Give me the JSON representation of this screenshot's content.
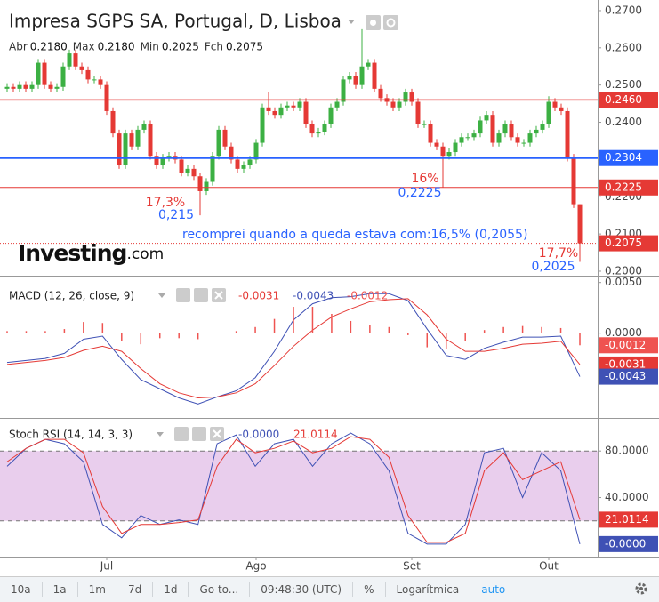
{
  "header": {
    "title": "Impresa SGPS SA, Portugal, D, Lisboa",
    "ohlc": [
      {
        "label": "Abr",
        "value": "0.2180"
      },
      {
        "label": "Max",
        "value": "0.2180"
      },
      {
        "label": "Min",
        "value": "0.2025"
      },
      {
        "label": "Fch",
        "value": "0.2075"
      }
    ]
  },
  "logo": {
    "name": "Investing",
    "suffix": ".com"
  },
  "chart_data": [
    {
      "type": "candlestick",
      "up_color": "#3cb043",
      "down_color": "#e53935",
      "ylim": [
        0.1988,
        0.2719
      ],
      "yticks": [
        {
          "value": 0.27,
          "label": "0.2700"
        },
        {
          "value": 0.26,
          "label": "0.2600"
        },
        {
          "value": 0.25,
          "label": "0.2500"
        },
        {
          "value": 0.24,
          "label": "0.2400"
        },
        {
          "value": 0.23,
          "label": "0.2300"
        },
        {
          "value": 0.22,
          "label": "0.2200"
        },
        {
          "value": 0.21,
          "label": "0.2100"
        },
        {
          "value": 0.2,
          "label": "0.2000"
        }
      ],
      "months": [
        "Jul",
        "Ago",
        "Set",
        "Out"
      ],
      "month_start": [
        16,
        40,
        65,
        87
      ],
      "candles": [
        [
          0.249,
          0.2505,
          0.248,
          0.2495
        ],
        [
          0.2495,
          0.2505,
          0.248,
          0.249
        ],
        [
          0.249,
          0.251,
          0.248,
          0.25
        ],
        [
          0.25,
          0.251,
          0.248,
          0.249
        ],
        [
          0.249,
          0.251,
          0.248,
          0.25
        ],
        [
          0.25,
          0.257,
          0.249,
          0.256
        ],
        [
          0.256,
          0.257,
          0.249,
          0.25
        ],
        [
          0.25,
          0.251,
          0.248,
          0.249
        ],
        [
          0.249,
          0.2505,
          0.248,
          0.2495
        ],
        [
          0.2495,
          0.256,
          0.2485,
          0.255
        ],
        [
          0.255,
          0.2595,
          0.254,
          0.2585
        ],
        [
          0.2585,
          0.2595,
          0.254,
          0.255
        ],
        [
          0.255,
          0.256,
          0.253,
          0.254
        ],
        [
          0.254,
          0.255,
          0.2505,
          0.2515
        ],
        [
          0.2515,
          0.2525,
          0.2505,
          0.2515
        ],
        [
          0.2515,
          0.2525,
          0.249,
          0.25
        ],
        [
          0.25,
          0.251,
          0.242,
          0.243
        ],
        [
          0.243,
          0.244,
          0.236,
          0.237
        ],
        [
          0.237,
          0.238,
          0.2275,
          0.2285
        ],
        [
          0.2285,
          0.238,
          0.2275,
          0.237
        ],
        [
          0.237,
          0.238,
          0.2325,
          0.2335
        ],
        [
          0.2335,
          0.239,
          0.2325,
          0.238
        ],
        [
          0.238,
          0.2405,
          0.237,
          0.2395
        ],
        [
          0.2395,
          0.2405,
          0.23,
          0.231
        ],
        [
          0.231,
          0.232,
          0.2275,
          0.2285
        ],
        [
          0.2285,
          0.2315,
          0.2275,
          0.2305
        ],
        [
          0.2305,
          0.232,
          0.2295,
          0.231
        ],
        [
          0.231,
          0.232,
          0.229,
          0.23
        ],
        [
          0.23,
          0.231,
          0.2255,
          0.2265
        ],
        [
          0.2265,
          0.2285,
          0.2255,
          0.2275
        ],
        [
          0.2275,
          0.2285,
          0.2245,
          0.2255
        ],
        [
          0.2255,
          0.2265,
          0.215,
          0.2215
        ],
        [
          0.2215,
          0.225,
          0.2205,
          0.224
        ],
        [
          0.224,
          0.232,
          0.223,
          0.231
        ],
        [
          0.231,
          0.239,
          0.23,
          0.238
        ],
        [
          0.238,
          0.239,
          0.2325,
          0.2335
        ],
        [
          0.2335,
          0.2345,
          0.229,
          0.23
        ],
        [
          0.23,
          0.231,
          0.2265,
          0.2275
        ],
        [
          0.2275,
          0.2295,
          0.2265,
          0.2285
        ],
        [
          0.2285,
          0.231,
          0.2275,
          0.23
        ],
        [
          0.23,
          0.2355,
          0.229,
          0.2345
        ],
        [
          0.2345,
          0.245,
          0.2335,
          0.244
        ],
        [
          0.244,
          0.248,
          0.242,
          0.243
        ],
        [
          0.243,
          0.244,
          0.241,
          0.242
        ],
        [
          0.242,
          0.245,
          0.241,
          0.244
        ],
        [
          0.244,
          0.2455,
          0.243,
          0.2445
        ],
        [
          0.2445,
          0.2455,
          0.243,
          0.244
        ],
        [
          0.244,
          0.2465,
          0.243,
          0.2455
        ],
        [
          0.2455,
          0.2465,
          0.2385,
          0.2395
        ],
        [
          0.2395,
          0.2405,
          0.236,
          0.237
        ],
        [
          0.237,
          0.2385,
          0.236,
          0.2375
        ],
        [
          0.2375,
          0.2405,
          0.2365,
          0.2395
        ],
        [
          0.2395,
          0.245,
          0.2385,
          0.244
        ],
        [
          0.244,
          0.2465,
          0.243,
          0.2455
        ],
        [
          0.2455,
          0.2525,
          0.2445,
          0.2515
        ],
        [
          0.2515,
          0.2535,
          0.2505,
          0.2525
        ],
        [
          0.2525,
          0.2535,
          0.249,
          0.25
        ],
        [
          0.25,
          0.265,
          0.249,
          0.255
        ],
        [
          0.255,
          0.257,
          0.254,
          0.256
        ],
        [
          0.256,
          0.257,
          0.248,
          0.249
        ],
        [
          0.249,
          0.25,
          0.2455,
          0.2465
        ],
        [
          0.2465,
          0.2475,
          0.2445,
          0.2455
        ],
        [
          0.2455,
          0.2465,
          0.243,
          0.244
        ],
        [
          0.244,
          0.2465,
          0.243,
          0.2455
        ],
        [
          0.2455,
          0.249,
          0.2445,
          0.248
        ],
        [
          0.248,
          0.249,
          0.2445,
          0.2455
        ],
        [
          0.2455,
          0.2465,
          0.2385,
          0.2395
        ],
        [
          0.2395,
          0.2405,
          0.2385,
          0.2395
        ],
        [
          0.2395,
          0.2405,
          0.2335,
          0.2345
        ],
        [
          0.2345,
          0.2355,
          0.2325,
          0.2335
        ],
        [
          0.2335,
          0.2345,
          0.2225,
          0.231
        ],
        [
          0.231,
          0.233,
          0.23,
          0.232
        ],
        [
          0.232,
          0.2355,
          0.231,
          0.2345
        ],
        [
          0.2345,
          0.237,
          0.2335,
          0.236
        ],
        [
          0.236,
          0.237,
          0.235,
          0.236
        ],
        [
          0.236,
          0.238,
          0.235,
          0.237
        ],
        [
          0.237,
          0.2415,
          0.236,
          0.2405
        ],
        [
          0.2405,
          0.243,
          0.2395,
          0.242
        ],
        [
          0.242,
          0.243,
          0.2335,
          0.2345
        ],
        [
          0.2345,
          0.238,
          0.2335,
          0.237
        ],
        [
          0.237,
          0.2405,
          0.236,
          0.2395
        ],
        [
          0.2395,
          0.2405,
          0.235,
          0.236
        ],
        [
          0.236,
          0.237,
          0.2335,
          0.2345
        ],
        [
          0.2345,
          0.2355,
          0.2335,
          0.2345
        ],
        [
          0.2345,
          0.238,
          0.2335,
          0.237
        ],
        [
          0.237,
          0.239,
          0.236,
          0.238
        ],
        [
          0.238,
          0.2405,
          0.237,
          0.2395
        ],
        [
          0.2395,
          0.247,
          0.2385,
          0.2455
        ],
        [
          0.2455,
          0.2465,
          0.243,
          0.244
        ],
        [
          0.244,
          0.245,
          0.242,
          0.243
        ],
        [
          0.243,
          0.244,
          0.2295,
          0.2305
        ],
        [
          0.2305,
          0.2315,
          0.217,
          0.218
        ],
        [
          0.218,
          0.218,
          0.2025,
          0.2075
        ]
      ],
      "hlines": [
        {
          "value": 0.246,
          "label": "0.2460",
          "color": "#e53935",
          "width": 1.5
        },
        {
          "value": 0.2304,
          "label": "0.2304",
          "color": "#2962ff",
          "width": 2
        },
        {
          "value": 0.2225,
          "label": "0.2225",
          "color": "#e53935",
          "width": 1
        },
        {
          "value": 0.2075,
          "label": "0.2075",
          "color": "#e53935",
          "width": 1,
          "style": "dotted"
        }
      ],
      "annotations": [
        {
          "text": "17,3%",
          "color": "#e53935"
        },
        {
          "text": "0,215",
          "color": "#2962ff"
        },
        {
          "text": "16%",
          "color": "#e53935"
        },
        {
          "text": "0,2225",
          "color": "#2962ff"
        },
        {
          "text": "recomprei quando a queda estava com:16,5% (0,2055)",
          "color": "#2962ff"
        },
        {
          "text": "17,7%",
          "color": "#e53935"
        },
        {
          "text": "0,2025",
          "color": "#2962ff"
        }
      ]
    },
    {
      "type": "macd",
      "title": "MACD (12, 26, close, 9)",
      "ylim": [
        -0.0082,
        0.0055
      ],
      "yticks": [
        {
          "value": 0.005,
          "label": "0.0050"
        },
        {
          "value": 0,
          "label": "0.0000"
        }
      ],
      "series": [
        {
          "color": "#3f51b5",
          "values": [
            -0.0029,
            -0.0027,
            -0.0025,
            -0.002,
            -0.0006,
            -0.0003,
            -0.0026,
            -0.0046,
            -0.0055,
            -0.0064,
            -0.007,
            -0.0063,
            -0.0057,
            -0.0044,
            -0.0018,
            0.0013,
            0.0029,
            0.0035,
            0.0036,
            0.0039,
            0.0039,
            0.0032,
            0.0004,
            -0.0022,
            -0.0026,
            -0.0015,
            -0.0009,
            -0.0004,
            -0.0004,
            -0.0003,
            -0.0043
          ]
        },
        {
          "color": "#e53935",
          "values": [
            -0.0031,
            -0.0029,
            -0.0027,
            -0.0024,
            -0.0017,
            -0.0013,
            -0.0018,
            -0.0035,
            -0.005,
            -0.0059,
            -0.0064,
            -0.0063,
            -0.0059,
            -0.005,
            -0.0032,
            -0.0013,
            0.0003,
            0.0016,
            0.0024,
            0.0031,
            0.0033,
            0.0034,
            0.0018,
            -0.0006,
            -0.0018,
            -0.0018,
            -0.0015,
            -0.0011,
            -0.001,
            -0.0008,
            -0.0031
          ]
        },
        {
          "color": "#ef5350",
          "style": "histogram",
          "values": [
            0.0002,
            0.0002,
            0.0002,
            0.0004,
            0.0011,
            0.001,
            -0.0008,
            -0.0011,
            -0.0005,
            -0.0005,
            -0.0006,
            0,
            0.0002,
            0.0006,
            0.0014,
            0.0026,
            0.0026,
            0.0019,
            0.0012,
            0.0008,
            0.0006,
            -0.0002,
            -0.0014,
            -0.0016,
            -0.0008,
            0.0003,
            0.0006,
            0.0007,
            0.0006,
            0.0005,
            -0.0012
          ]
        }
      ]
    },
    {
      "type": "stoch",
      "title": "Stoch RSI (14, 14, 3, 3)",
      "ylim": [
        -10.8,
        106.9
      ],
      "yticks": [
        {
          "value": 80,
          "label": "80.0000"
        },
        {
          "value": 40,
          "label": "40.0000"
        }
      ],
      "levels": [
        20,
        80
      ],
      "band_color": "#e1bee7",
      "readouts": [
        "-0.0000"
      ],
      "series": [
        {
          "color": "#3f51b5",
          "values": [
            66.9,
            82.3,
            90,
            86.2,
            70.8,
            16.9,
            5.4,
            24.6,
            16.9,
            20.8,
            16.9,
            86.2,
            93.8,
            66.9,
            86.2,
            90,
            66.9,
            86.2,
            95.4,
            86.2,
            63.1,
            9.2,
            0,
            0,
            16.9,
            78.5,
            82.3,
            40,
            78.5,
            63.1,
            0
          ]
        },
        {
          "color": "#e53935",
          "values": [
            70.8,
            82.3,
            90,
            90,
            78.5,
            32.3,
            9.2,
            16.9,
            16.9,
            18.5,
            20.8,
            66.9,
            90,
            78.5,
            82.3,
            88.5,
            78.5,
            82.3,
            92.3,
            90,
            74.6,
            24.6,
            1.5,
            1.5,
            9.2,
            63.1,
            78.5,
            55.4,
            63.1,
            70.8,
            21.0114
          ]
        }
      ]
    }
  ],
  "toolbar": [
    "10a",
    "1a",
    "1m",
    "7d",
    "1d",
    "Go to...",
    "09:48:30 (UTC)",
    "%",
    "Logarítmica",
    "auto"
  ]
}
